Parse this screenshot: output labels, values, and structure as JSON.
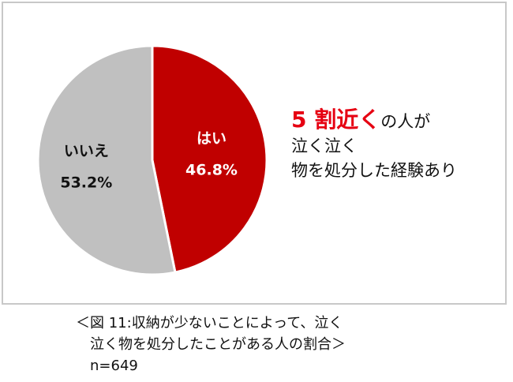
{
  "chart_data": {
    "type": "pie",
    "categories": [
      "はい",
      "いいえ"
    ],
    "values": [
      46.8,
      53.2
    ],
    "value_labels": [
      "46.8%",
      "53.2%"
    ],
    "colors": [
      "#c00000",
      "#c0c0c0"
    ],
    "start_angle_deg": 0,
    "direction": "clockwise",
    "legend": "none",
    "title": "",
    "annotation": {
      "highlight": "5 割近く",
      "line1_rest": "の人が",
      "line2": "泣く泣く",
      "line3": "物を処分した経験あり"
    }
  },
  "caption": {
    "line1": "＜図 11:収納が少ないことによって、泣く",
    "line2": "泣く物を処分したことがある人の割合＞",
    "line3": "n=649"
  },
  "colors": {
    "highlight": "#e60012",
    "frame": "#c8c8c8",
    "text": "#111111"
  }
}
